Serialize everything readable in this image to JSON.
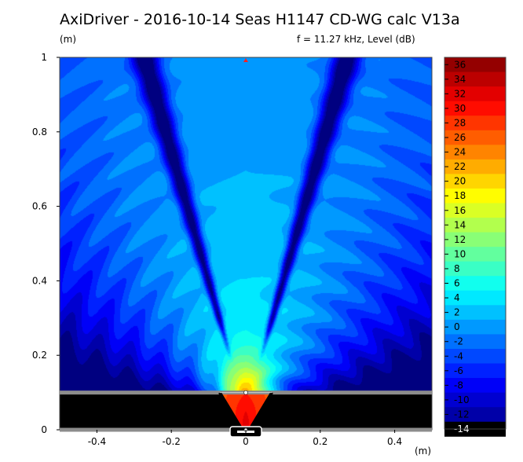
{
  "title": "AxiDriver - 2016-10-14 Seas H1147 CD-WG calc V13a",
  "ylabel": "(m)",
  "xlabel": "(m)",
  "info": "f = 11.27 kHz, Level  (dB)",
  "chart_data": {
    "type": "heatmap",
    "title": "AxiDriver - 2016-10-14 Seas H1147 CD-WG calc V13a",
    "subtitle": "f = 11.27 kHz, Level  (dB)",
    "xlabel": "(m)",
    "ylabel": "(m)",
    "xlim": [
      -0.5,
      0.5
    ],
    "ylim": [
      0,
      1
    ],
    "x_ticks": [
      -0.4,
      -0.2,
      0,
      0.2,
      0.4
    ],
    "x_tick_labels": [
      "-0.4",
      "-0.2",
      "0",
      "0.2",
      "0.4"
    ],
    "y_ticks": [
      0,
      0.2,
      0.4,
      0.6,
      0.8,
      1
    ],
    "y_tick_labels": [
      "0",
      "0.2",
      "0.4",
      "0.6",
      "0.8",
      "1"
    ],
    "colorbar": {
      "min": -14,
      "max": 37,
      "ticks": [
        36,
        34,
        32,
        30,
        28,
        26,
        24,
        22,
        20,
        18,
        16,
        14,
        12,
        10,
        8,
        6,
        4,
        2,
        0,
        -2,
        -4,
        -6,
        -8,
        -10,
        -12,
        -14
      ],
      "labels": [
        "36",
        "34",
        "32",
        "30",
        "28",
        "26",
        "24",
        "22",
        "20",
        "18",
        "16",
        "14",
        "12",
        "10",
        "8",
        "6",
        "4",
        "2",
        "0",
        "-2",
        "-4",
        "-6",
        "-8",
        "-10",
        "-12",
        "-14"
      ]
    },
    "baffle_y": 0.1,
    "waveguide": {
      "throat_x": [
        -0.01,
        0.01
      ],
      "mouth_x": [
        -0.07,
        0.07
      ],
      "throat_y": 0,
      "mouth_y": 0.1
    },
    "field_model": {
      "background_level": -3,
      "near_source_level": 30,
      "null_angles_deg": [
        16,
        -16
      ],
      "description_values": [
        {
          "x": 0,
          "y": 0.05,
          "level": 30
        },
        {
          "x": 0,
          "y": 0.2,
          "level": 14
        },
        {
          "x": 0,
          "y": 0.5,
          "level": 6
        },
        {
          "x": 0,
          "y": 0.9,
          "level": 3
        },
        {
          "x": -0.09,
          "y": 0.55,
          "level": -14
        },
        {
          "x": 0.09,
          "y": 0.55,
          "level": -14
        },
        {
          "x": -0.4,
          "y": 0.3,
          "level": -4
        }
      ]
    }
  }
}
